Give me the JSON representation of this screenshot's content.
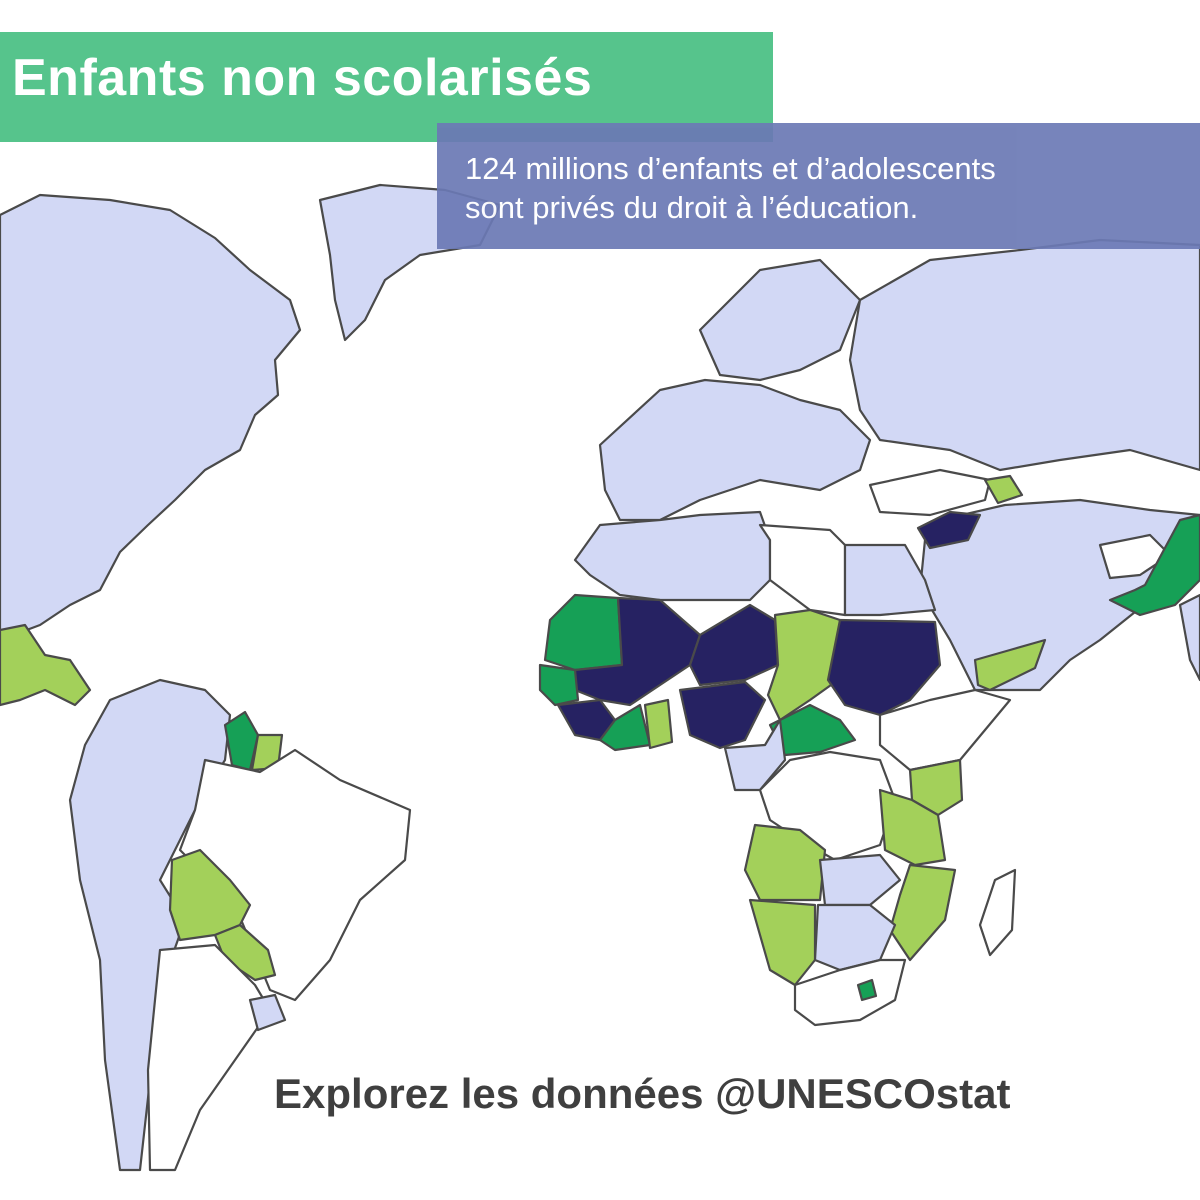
{
  "title": "Enfants non scolarisés",
  "subtitle_line1": "124 millions d’enfants et d’adolescents",
  "subtitle_line2": "sont privés du droit à l’éducation.",
  "footer_cta": "Explorez les données @UNESCOstat",
  "colors": {
    "title_banner": "#56c48c",
    "subtitle_box": "#6b79b5",
    "ocean": "#ffffff",
    "border": "#4a4a4a",
    "level_low": "#d2d8f5",
    "level_no_data": "#ffffff",
    "level_medium": "#a3d05a",
    "level_high": "#16a056",
    "level_very_high": "#262262"
  },
  "map_layers": [
    {
      "name": "north-america",
      "level": "low"
    },
    {
      "name": "greenland",
      "level": "low"
    },
    {
      "name": "central-america",
      "level": "medium"
    },
    {
      "name": "south-america-north",
      "level": "low"
    },
    {
      "name": "guyana",
      "level": "high"
    },
    {
      "name": "suriname",
      "level": "medium"
    },
    {
      "name": "brazil",
      "level": "no_data"
    },
    {
      "name": "bolivia",
      "level": "medium"
    },
    {
      "name": "paraguay",
      "level": "medium"
    },
    {
      "name": "chile",
      "level": "low"
    },
    {
      "name": "argentina",
      "level": "no_data"
    },
    {
      "name": "uruguay",
      "level": "low"
    },
    {
      "name": "europe",
      "level": "low"
    },
    {
      "name": "scandinavia",
      "level": "low"
    },
    {
      "name": "russia",
      "level": "low"
    },
    {
      "name": "turkey",
      "level": "no_data"
    },
    {
      "name": "middle-east",
      "level": "low"
    },
    {
      "name": "syria",
      "level": "very_high"
    },
    {
      "name": "armenia",
      "level": "medium"
    },
    {
      "name": "afghanistan",
      "level": "no_data"
    },
    {
      "name": "pakistan",
      "level": "high"
    },
    {
      "name": "india",
      "level": "low"
    },
    {
      "name": "yemen",
      "level": "medium"
    },
    {
      "name": "north-africa-west",
      "level": "low"
    },
    {
      "name": "libya",
      "level": "no_data"
    },
    {
      "name": "egypt",
      "level": "low"
    },
    {
      "name": "mauritania",
      "level": "high"
    },
    {
      "name": "mali",
      "level": "very_high"
    },
    {
      "name": "niger",
      "level": "very_high"
    },
    {
      "name": "chad",
      "level": "medium"
    },
    {
      "name": "sudan",
      "level": "very_high"
    },
    {
      "name": "senegal",
      "level": "high"
    },
    {
      "name": "guinea",
      "level": "very_high"
    },
    {
      "name": "cote-divoire",
      "level": "high"
    },
    {
      "name": "ghana",
      "level": "medium"
    },
    {
      "name": "nigeria",
      "level": "very_high"
    },
    {
      "name": "central-african-republic",
      "level": "high"
    },
    {
      "name": "cameroon",
      "level": "low"
    },
    {
      "name": "ethiopia",
      "level": "no_data"
    },
    {
      "name": "drc",
      "level": "no_data"
    },
    {
      "name": "kenya",
      "level": "medium"
    },
    {
      "name": "tanzania",
      "level": "medium"
    },
    {
      "name": "angola",
      "level": "medium"
    },
    {
      "name": "zambia",
      "level": "low"
    },
    {
      "name": "mozambique",
      "level": "medium"
    },
    {
      "name": "namibia",
      "level": "medium"
    },
    {
      "name": "botswana",
      "level": "low"
    },
    {
      "name": "south-africa",
      "level": "no_data"
    },
    {
      "name": "lesotho",
      "level": "high"
    },
    {
      "name": "madagascar",
      "level": "no_data"
    }
  ]
}
